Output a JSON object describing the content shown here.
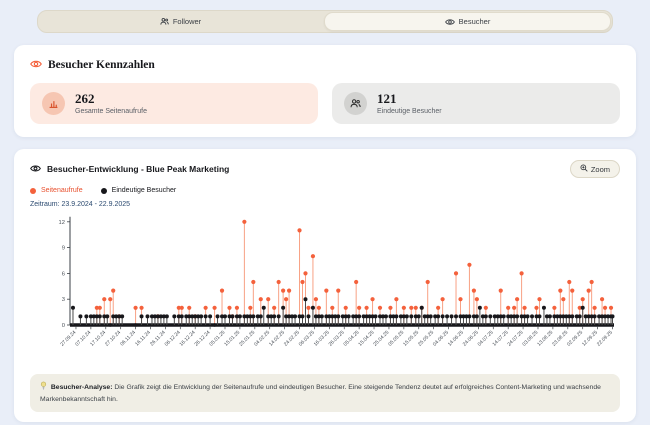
{
  "tabs": {
    "follower": "Follower",
    "besucher": "Besucher"
  },
  "kennzahlen": {
    "title": "Besucher Kennzahlen",
    "stats": [
      {
        "value": "262",
        "label": "Gesamte Seitenaufrufe"
      },
      {
        "value": "121",
        "label": "Eindeutige Besucher"
      }
    ]
  },
  "chart": {
    "title": "Besucher-Entwicklung - Blue Peak Marketing",
    "zoom_label": "Zoom",
    "zeitraum": "Zeitraum: 23.9.2024 - 22.9.2025"
  },
  "analysis": {
    "title": "Besucher-Analyse:",
    "text": "Die Grafik zeigt die Entwicklung der Seitenaufrufe und eindeutigen Besucher. Eine steigende Tendenz deutet auf erfolgreiches Content-Marketing und wachsende Markenbekanntschaft hin."
  },
  "chart_data": {
    "type": "stem",
    "title": "Besucher-Entwicklung - Blue Peak Marketing",
    "legend": [
      {
        "name": "Seitenaufrufe",
        "color": "#f4613c"
      },
      {
        "name": "Eindeutige Besucher",
        "color": "#17171b"
      }
    ],
    "colors": {
      "views": "#f4613c",
      "views_line": "#f8a184",
      "visitors": "#17171b",
      "visitors_line": "#4a4a4a",
      "axis": "#3a3f45",
      "tick_text": "#4a5058"
    },
    "ylim": [
      0,
      12
    ],
    "yticks": [
      0,
      3,
      6,
      9,
      12
    ],
    "days_total": 365,
    "tick_start_day": 4,
    "tick_step": 10,
    "x_tick_labels": [
      "27.09.24",
      "07.10.24",
      "17.10.24",
      "27.10.24",
      "06.11.24",
      "16.11.24",
      "26.11.24",
      "06.12.24",
      "16.12.24",
      "26.12.24",
      "05.01.25",
      "15.01.25",
      "25.01.25",
      "04.02.25",
      "14.02.25",
      "24.02.25",
      "06.03.25",
      "16.03.25",
      "26.03.25",
      "05.04.25",
      "15.04.25",
      "25.04.25",
      "05.05.25",
      "15.05.25",
      "25.05.25",
      "04.06.25",
      "14.06.25",
      "24.06.25",
      "04.07.25",
      "14.07.25",
      "24.07.25",
      "03.08.25",
      "13.08.25",
      "23.08.25",
      "02.09.25",
      "12.09.25",
      "22.09.25"
    ],
    "series_note": "stems = [day_offset_from_23.09.2024, seitenaufrufe, eindeutige_besucher]; values estimated from plot",
    "stems": [
      [
        2,
        0,
        2
      ],
      [
        7,
        0,
        1
      ],
      [
        11,
        0,
        1
      ],
      [
        14,
        0,
        1
      ],
      [
        16,
        0,
        1
      ],
      [
        18,
        2,
        1
      ],
      [
        20,
        2,
        1
      ],
      [
        23,
        3,
        1
      ],
      [
        25,
        0,
        1
      ],
      [
        27,
        3,
        0
      ],
      [
        29,
        4,
        1
      ],
      [
        31,
        0,
        1
      ],
      [
        33,
        1,
        1
      ],
      [
        35,
        0,
        1
      ],
      [
        44,
        2,
        0
      ],
      [
        48,
        2,
        1
      ],
      [
        52,
        0,
        1
      ],
      [
        55,
        0,
        1
      ],
      [
        57,
        0,
        1
      ],
      [
        59,
        1,
        1
      ],
      [
        61,
        0,
        1
      ],
      [
        63,
        0,
        1
      ],
      [
        65,
        0,
        1
      ],
      [
        70,
        0,
        1
      ],
      [
        73,
        2,
        1
      ],
      [
        75,
        2,
        1
      ],
      [
        78,
        0,
        1
      ],
      [
        80,
        2,
        1
      ],
      [
        82,
        0,
        1
      ],
      [
        84,
        1,
        1
      ],
      [
        86,
        0,
        1
      ],
      [
        88,
        0,
        1
      ],
      [
        91,
        2,
        1
      ],
      [
        94,
        0,
        1
      ],
      [
        97,
        2,
        0
      ],
      [
        99,
        0,
        1
      ],
      [
        102,
        4,
        1
      ],
      [
        104,
        0,
        1
      ],
      [
        107,
        2,
        1
      ],
      [
        109,
        1,
        1
      ],
      [
        112,
        2,
        1
      ],
      [
        114,
        0,
        1
      ],
      [
        117,
        12,
        1
      ],
      [
        119,
        0,
        1
      ],
      [
        121,
        2,
        1
      ],
      [
        123,
        5,
        1
      ],
      [
        126,
        0,
        1
      ],
      [
        128,
        3,
        1
      ],
      [
        130,
        0,
        2
      ],
      [
        133,
        3,
        1
      ],
      [
        135,
        0,
        1
      ],
      [
        137,
        2,
        1
      ],
      [
        140,
        5,
        1
      ],
      [
        143,
        4,
        2
      ],
      [
        145,
        3,
        1
      ],
      [
        147,
        4,
        1
      ],
      [
        149,
        0,
        1
      ],
      [
        151,
        0,
        1
      ],
      [
        154,
        11,
        1
      ],
      [
        156,
        5,
        1
      ],
      [
        158,
        6,
        3
      ],
      [
        160,
        2,
        1
      ],
      [
        163,
        8,
        2
      ],
      [
        165,
        3,
        1
      ],
      [
        167,
        2,
        1
      ],
      [
        169,
        0,
        1
      ],
      [
        172,
        4,
        1
      ],
      [
        174,
        0,
        1
      ],
      [
        176,
        2,
        1
      ],
      [
        178,
        0,
        1
      ],
      [
        180,
        4,
        1
      ],
      [
        183,
        0,
        1
      ],
      [
        185,
        2,
        1
      ],
      [
        187,
        0,
        1
      ],
      [
        190,
        0,
        1
      ],
      [
        192,
        5,
        1
      ],
      [
        194,
        2,
        1
      ],
      [
        197,
        0,
        1
      ],
      [
        199,
        2,
        1
      ],
      [
        201,
        0,
        1
      ],
      [
        203,
        3,
        1
      ],
      [
        205,
        0,
        1
      ],
      [
        208,
        2,
        1
      ],
      [
        210,
        0,
        1
      ],
      [
        212,
        0,
        1
      ],
      [
        215,
        2,
        1
      ],
      [
        217,
        0,
        1
      ],
      [
        219,
        3,
        1
      ],
      [
        222,
        0,
        1
      ],
      [
        224,
        2,
        1
      ],
      [
        226,
        0,
        1
      ],
      [
        229,
        2,
        1
      ],
      [
        232,
        2,
        1
      ],
      [
        234,
        0,
        1
      ],
      [
        236,
        2,
        2
      ],
      [
        238,
        0,
        1
      ],
      [
        240,
        5,
        1
      ],
      [
        242,
        0,
        1
      ],
      [
        245,
        0,
        1
      ],
      [
        247,
        2,
        1
      ],
      [
        250,
        3,
        1
      ],
      [
        253,
        0,
        1
      ],
      [
        256,
        0,
        1
      ],
      [
        259,
        6,
        1
      ],
      [
        262,
        3,
        1
      ],
      [
        264,
        0,
        1
      ],
      [
        266,
        0,
        1
      ],
      [
        268,
        7,
        1
      ],
      [
        271,
        4,
        1
      ],
      [
        273,
        3,
        1
      ],
      [
        275,
        0,
        2
      ],
      [
        277,
        0,
        1
      ],
      [
        279,
        2,
        1
      ],
      [
        282,
        0,
        1
      ],
      [
        285,
        0,
        1
      ],
      [
        287,
        0,
        1
      ],
      [
        289,
        4,
        1
      ],
      [
        291,
        0,
        1
      ],
      [
        294,
        2,
        1
      ],
      [
        296,
        0,
        1
      ],
      [
        298,
        2,
        1
      ],
      [
        300,
        3,
        1
      ],
      [
        303,
        6,
        1
      ],
      [
        305,
        2,
        1
      ],
      [
        307,
        0,
        1
      ],
      [
        310,
        0,
        1
      ],
      [
        313,
        2,
        1
      ],
      [
        315,
        3,
        1
      ],
      [
        318,
        0,
        2
      ],
      [
        320,
        0,
        1
      ],
      [
        322,
        0,
        1
      ],
      [
        325,
        2,
        1
      ],
      [
        327,
        0,
        1
      ],
      [
        329,
        4,
        1
      ],
      [
        331,
        3,
        1
      ],
      [
        333,
        0,
        1
      ],
      [
        335,
        5,
        1
      ],
      [
        337,
        4,
        1
      ],
      [
        340,
        0,
        1
      ],
      [
        342,
        2,
        1
      ],
      [
        344,
        3,
        2
      ],
      [
        346,
        0,
        1
      ],
      [
        348,
        4,
        1
      ],
      [
        350,
        5,
        1
      ],
      [
        352,
        2,
        1
      ],
      [
        355,
        0,
        1
      ],
      [
        357,
        3,
        1
      ],
      [
        359,
        2,
        1
      ],
      [
        361,
        0,
        1
      ],
      [
        363,
        2,
        1
      ],
      [
        364,
        0,
        1
      ]
    ]
  }
}
